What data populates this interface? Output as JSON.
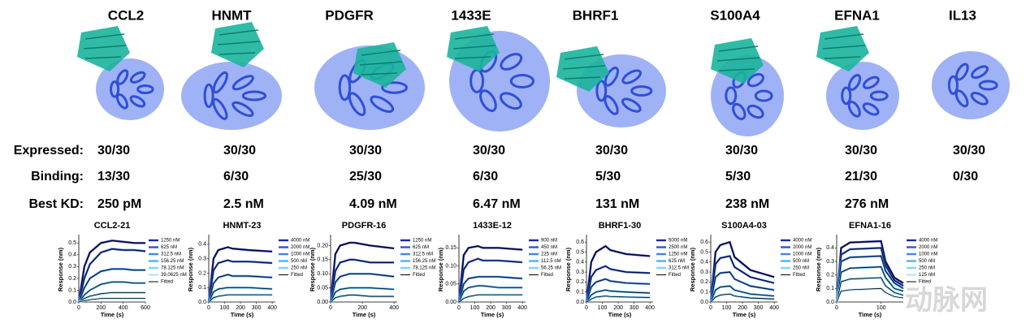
{
  "row_labels": [
    "Expressed:",
    "Binding:",
    "Best KD:"
  ],
  "targets": [
    {
      "name": "CCL2",
      "expressed": "30/30",
      "binding": "13/30",
      "best_kd": "250 pM"
    },
    {
      "name": "HNMT",
      "expressed": "30/30",
      "binding": "6/30",
      "best_kd": "2.5 nM"
    },
    {
      "name": "PDGFR",
      "expressed": "30/30",
      "binding": "25/30",
      "best_kd": "4.09 nM"
    },
    {
      "name": "1433E",
      "expressed": "30/30",
      "binding": "6/30",
      "best_kd": "6.47 nM"
    },
    {
      "name": "BHRF1",
      "expressed": "30/30",
      "binding": "5/30",
      "best_kd": "131 nM"
    },
    {
      "name": "S100A4",
      "expressed": "30/30",
      "binding": "5/30",
      "best_kd": "238 nM"
    },
    {
      "name": "EFNA1",
      "expressed": "30/30",
      "binding": "21/30",
      "best_kd": "276 nM"
    },
    {
      "name": "IL13",
      "expressed": "30/30",
      "binding": "0/30"
    }
  ],
  "watermark": "动脉网",
  "chart_data": [
    {
      "type": "line",
      "title": "CCL2-21",
      "xlabel": "Time (s)",
      "ylabel": "Response (nm)",
      "fit_label": "Fitted",
      "fit_color": "#000000",
      "x": [
        0,
        50,
        100,
        200,
        300,
        400,
        500,
        600
      ],
      "xlim": [
        0,
        600
      ],
      "xticks": [
        0,
        200,
        400,
        600
      ],
      "ylim": [
        0,
        0.55
      ],
      "yticks": [
        {
          "value": 0,
          "label": "0.0"
        },
        0.1,
        0.2,
        0.3,
        0.4,
        0.5
      ],
      "series": [
        {
          "name": "1250 nM",
          "color": "#1a2a9c",
          "values": [
            0,
            0.3,
            0.42,
            0.5,
            0.52,
            0.51,
            0.5,
            0.5
          ]
        },
        {
          "name": "625 nM",
          "color": "#2f55d4",
          "values": [
            0,
            0.2,
            0.32,
            0.42,
            0.45,
            0.44,
            0.44,
            0.43
          ]
        },
        {
          "name": "312.5 nM",
          "color": "#3f86ea",
          "values": [
            0,
            0.12,
            0.2,
            0.26,
            0.28,
            0.28,
            0.27,
            0.27
          ]
        },
        {
          "name": "156.25 nM",
          "color": "#4fb0f2",
          "values": [
            0,
            0.06,
            0.1,
            0.15,
            0.17,
            0.17,
            0.16,
            0.16
          ]
        },
        {
          "name": "78.125 nM",
          "color": "#86d0f7",
          "values": [
            0,
            0.03,
            0.05,
            0.07,
            0.08,
            0.08,
            0.08,
            0.08
          ]
        },
        {
          "name": "39.0625 nM",
          "color": "#b8e4fa",
          "values": [
            0,
            0.01,
            0.02,
            0.03,
            0.03,
            0.03,
            0.03,
            0.03
          ]
        }
      ]
    },
    {
      "type": "line",
      "title": "HNMT-23",
      "xlabel": "Time (s)",
      "ylabel": "Response (nm)",
      "fit_label": "Fitted",
      "fit_color": "#000000",
      "x": [
        0,
        30,
        60,
        120,
        150,
        250,
        400
      ],
      "xlim": [
        0,
        420
      ],
      "xticks": [
        0,
        100,
        200,
        300,
        400
      ],
      "ylim": [
        0,
        0.45
      ],
      "yticks": [
        {
          "value": 0,
          "label": "0.0"
        },
        0.1,
        0.2,
        0.3,
        0.4
      ],
      "series": [
        {
          "name": "4000 nM",
          "color": "#1a2a9c",
          "values": [
            0,
            0.3,
            0.36,
            0.38,
            0.37,
            0.36,
            0.35
          ]
        },
        {
          "name": "2000 nM",
          "color": "#2f55d4",
          "values": [
            0,
            0.22,
            0.27,
            0.29,
            0.28,
            0.28,
            0.27
          ]
        },
        {
          "name": "1000 nM",
          "color": "#3f86ea",
          "values": [
            0,
            0.13,
            0.17,
            0.19,
            0.18,
            0.18,
            0.17
          ]
        },
        {
          "name": "500 nM",
          "color": "#4fb0f2",
          "values": [
            0,
            0.07,
            0.09,
            0.1,
            0.1,
            0.1,
            0.09
          ]
        },
        {
          "name": "250 nM",
          "color": "#86d0f7",
          "values": [
            0,
            0.03,
            0.04,
            0.05,
            0.05,
            0.05,
            0.05
          ]
        }
      ]
    },
    {
      "type": "line",
      "title": "PDGFR-16",
      "xlabel": "Time (s)",
      "ylabel": "Response (nm)",
      "fit_label": "Fitted",
      "fit_color": "#000000",
      "x": [
        0,
        30,
        60,
        120,
        150,
        250,
        400
      ],
      "xlim": [
        0,
        420
      ],
      "xticks": [
        0,
        200,
        400
      ],
      "ylim": [
        0,
        0.23
      ],
      "yticks": [
        {
          "value": 0,
          "label": "0.00"
        },
        0.05,
        {
          "value": 0.1,
          "label": "0.10"
        },
        0.15,
        {
          "value": 0.2,
          "label": "0.20"
        }
      ],
      "series": [
        {
          "name": "1250 nM",
          "color": "#1a2a9c",
          "values": [
            0,
            0.17,
            0.2,
            0.21,
            0.21,
            0.2,
            0.19
          ]
        },
        {
          "name": "625 nM",
          "color": "#2f55d4",
          "values": [
            0,
            0.11,
            0.14,
            0.15,
            0.15,
            0.14,
            0.14
          ]
        },
        {
          "name": "312.5 nM",
          "color": "#3f86ea",
          "values": [
            0,
            0.07,
            0.09,
            0.1,
            0.1,
            0.1,
            0.09
          ]
        },
        {
          "name": "156.25 nM",
          "color": "#4fb0f2",
          "values": [
            0,
            0.035,
            0.045,
            0.05,
            0.05,
            0.05,
            0.045
          ]
        },
        {
          "name": "78.125 nM",
          "color": "#86d0f7",
          "values": [
            0,
            0.015,
            0.02,
            0.025,
            0.025,
            0.02,
            0.02
          ]
        }
      ]
    },
    {
      "type": "line",
      "title": "1433E-12",
      "xlabel": "Time (s)",
      "ylabel": "Response (nm)",
      "fit_label": "Fitted",
      "fit_color": "#000000",
      "x": [
        0,
        30,
        60,
        120,
        150,
        250,
        400
      ],
      "xlim": [
        0,
        420
      ],
      "xticks": [
        0,
        100,
        200,
        300,
        400
      ],
      "ylim": [
        0,
        0.18
      ],
      "yticks": [
        {
          "value": 0,
          "label": "0.00"
        },
        0.05,
        {
          "value": 0.1,
          "label": "0.10"
        },
        0.15
      ],
      "series": [
        {
          "name": "900 nM",
          "color": "#1a2a9c",
          "values": [
            0,
            0.13,
            0.15,
            0.155,
            0.15,
            0.15,
            0.145
          ]
        },
        {
          "name": "450 nM",
          "color": "#2f55d4",
          "values": [
            0,
            0.09,
            0.11,
            0.12,
            0.115,
            0.115,
            0.11
          ]
        },
        {
          "name": "225 nM",
          "color": "#3f86ea",
          "values": [
            0,
            0.05,
            0.065,
            0.07,
            0.07,
            0.07,
            0.065
          ]
        },
        {
          "name": "112.5 nM",
          "color": "#4fb0f2",
          "values": [
            0,
            0.03,
            0.04,
            0.045,
            0.045,
            0.04,
            0.04
          ]
        },
        {
          "name": "56.25 nM",
          "color": "#86d0f7",
          "values": [
            0,
            0.01,
            0.015,
            0.02,
            0.02,
            0.02,
            0.02
          ]
        }
      ]
    },
    {
      "type": "line",
      "title": "BHRF1-30",
      "xlabel": "Time (s)",
      "ylabel": "Response (nm)",
      "fit_label": "Fitted",
      "fit_color": "#000000",
      "x": [
        0,
        30,
        60,
        120,
        150,
        250,
        400
      ],
      "xlim": [
        0,
        420
      ],
      "xticks": [
        0,
        100,
        200,
        300,
        400
      ],
      "ylim": [
        0,
        0.65
      ],
      "yticks": [
        {
          "value": 0,
          "label": "0.0"
        },
        0.1,
        0.2,
        0.3,
        0.4,
        0.5,
        0.6
      ],
      "series": [
        {
          "name": "5000 nM",
          "color": "#1a2a9c",
          "values": [
            0,
            0.4,
            0.5,
            0.56,
            0.52,
            0.48,
            0.46
          ]
        },
        {
          "name": "2500 nM",
          "color": "#2f55d4",
          "values": [
            0,
            0.25,
            0.32,
            0.36,
            0.33,
            0.3,
            0.29
          ]
        },
        {
          "name": "1250 nM",
          "color": "#3f86ea",
          "values": [
            0,
            0.15,
            0.2,
            0.23,
            0.21,
            0.19,
            0.18
          ]
        },
        {
          "name": "625 nM",
          "color": "#4fb0f2",
          "values": [
            0,
            0.07,
            0.1,
            0.12,
            0.11,
            0.1,
            0.09
          ]
        },
        {
          "name": "312.5 nM",
          "color": "#86d0f7",
          "values": [
            0,
            0.03,
            0.05,
            0.06,
            0.055,
            0.05,
            0.045
          ]
        }
      ]
    },
    {
      "type": "line",
      "title": "S100A4-03",
      "xlabel": "Time (s)",
      "ylabel": "Response (nm)",
      "fit_label": "Fitted",
      "fit_color": "#000000",
      "x": [
        0,
        30,
        60,
        120,
        150,
        250,
        400
      ],
      "xlim": [
        0,
        420
      ],
      "xticks": [
        0,
        100,
        200,
        300,
        400
      ],
      "ylim": [
        0,
        0.65
      ],
      "yticks": [
        {
          "value": 0,
          "label": "0.0"
        },
        0.1,
        0.2,
        0.3,
        0.4,
        0.5,
        0.6
      ],
      "series": [
        {
          "name": "4000 nM",
          "color": "#1a2a9c",
          "values": [
            0,
            0.5,
            0.57,
            0.6,
            0.45,
            0.32,
            0.25
          ]
        },
        {
          "name": "2000 nM",
          "color": "#2f55d4",
          "values": [
            0,
            0.38,
            0.44,
            0.46,
            0.35,
            0.25,
            0.19
          ]
        },
        {
          "name": "1000 nM",
          "color": "#3f86ea",
          "values": [
            0,
            0.25,
            0.29,
            0.3,
            0.23,
            0.16,
            0.12
          ]
        },
        {
          "name": "500 nM",
          "color": "#4fb0f2",
          "values": [
            0,
            0.12,
            0.15,
            0.16,
            0.12,
            0.08,
            0.06
          ]
        },
        {
          "name": "250 nM",
          "color": "#86d0f7",
          "values": [
            0,
            0.05,
            0.07,
            0.08,
            0.06,
            0.04,
            0.03
          ]
        }
      ]
    },
    {
      "type": "line",
      "title": "EFNA1-16",
      "xlabel": "Time (s)",
      "ylabel": "Response (nm)",
      "fit_label": "Fitted",
      "fit_color": "#000000",
      "x": [
        0,
        10,
        30,
        100,
        110,
        130,
        150
      ],
      "xlim": [
        0,
        150
      ],
      "xticks": [
        0,
        100
      ],
      "ylim": [
        0,
        0.48
      ],
      "yticks": [
        {
          "value": 0,
          "label": "0.0"
        },
        0.1,
        0.2,
        0.3,
        0.4
      ],
      "series": [
        {
          "name": "4000 nM",
          "color": "#1a2a9c",
          "values": [
            0,
            0.4,
            0.44,
            0.45,
            0.3,
            0.18,
            0.14
          ]
        },
        {
          "name": "2000 nM",
          "color": "#2f55d4",
          "values": [
            0,
            0.35,
            0.39,
            0.4,
            0.27,
            0.16,
            0.12
          ]
        },
        {
          "name": "1000 nM",
          "color": "#3f86ea",
          "values": [
            0,
            0.3,
            0.33,
            0.34,
            0.23,
            0.14,
            0.1
          ]
        },
        {
          "name": "500 nM",
          "color": "#4fb0f2",
          "values": [
            0,
            0.22,
            0.25,
            0.26,
            0.18,
            0.1,
            0.08
          ]
        },
        {
          "name": "250 nM",
          "color": "#86d0f7",
          "values": [
            0,
            0.15,
            0.17,
            0.18,
            0.12,
            0.07,
            0.05
          ]
        },
        {
          "name": "125 nM",
          "color": "#b8e4fa",
          "values": [
            0,
            0.08,
            0.09,
            0.1,
            0.07,
            0.04,
            0.03
          ]
        }
      ]
    }
  ]
}
